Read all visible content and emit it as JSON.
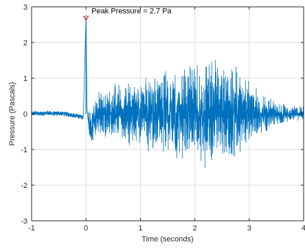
{
  "chart_data": {
    "type": "line",
    "title": "",
    "xlabel": "Time (seconds)",
    "ylabel": "Pressure (Pascals)",
    "xlim": [
      -1,
      4
    ],
    "ylim": [
      -3,
      3
    ],
    "xticks": [
      -1,
      0,
      1,
      2,
      3,
      4
    ],
    "yticks": [
      -3,
      -2,
      -1,
      0,
      1,
      2,
      3
    ],
    "xtick_labels": [
      "-1",
      "0",
      "1",
      "2",
      "3",
      "4"
    ],
    "ytick_labels": [
      "-3",
      "-2",
      "-1",
      "0",
      "1",
      "2",
      "3"
    ],
    "grid": true,
    "series": [
      {
        "color": "#0072bd",
        "x": [
          -1.0,
          -0.9,
          -0.8,
          -0.7,
          -0.6,
          -0.5,
          -0.4,
          -0.3,
          -0.2,
          -0.1,
          -0.05,
          0.0,
          0.02,
          0.05,
          0.1,
          0.15,
          0.2,
          0.3,
          0.5,
          0.75,
          1.0,
          1.25,
          1.5,
          1.75,
          2.0,
          2.25,
          2.5,
          2.75,
          3.0,
          3.25,
          3.5,
          3.75,
          4.0
        ],
        "y": [
          0.0,
          0.02,
          0.0,
          0.03,
          0.0,
          0.02,
          0.0,
          -0.02,
          -0.05,
          -0.08,
          -0.1,
          2.7,
          0.1,
          -0.3,
          -0.5,
          -0.2,
          0.0,
          0.0,
          0.05,
          0.0,
          0.0,
          0.0,
          0.05,
          0.0,
          0.0,
          0.0,
          0.05,
          0.0,
          0.0,
          0.0,
          0.0,
          0.0,
          0.0
        ],
        "noise_band": [
          0.12,
          0.12,
          0.12,
          0.12,
          0.12,
          0.12,
          0.12,
          0.12,
          0.12,
          0.12,
          0.12,
          0.0,
          0.12,
          0.2,
          0.2,
          0.25,
          0.3,
          0.3,
          0.35,
          0.4,
          0.45,
          0.5,
          0.55,
          0.6,
          0.6,
          0.65,
          0.7,
          0.6,
          0.4,
          0.25,
          0.15,
          0.1,
          0.1
        ]
      }
    ],
    "annotation": {
      "text": "Peak Pressure =  2.7 Pa",
      "x": 0.0,
      "y": 2.7,
      "marker": "triangle-down",
      "marker_color": "#d62728"
    }
  }
}
